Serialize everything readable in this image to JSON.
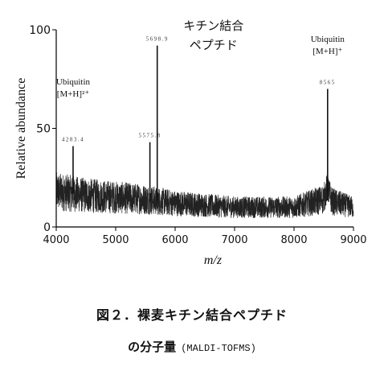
{
  "chart_data": {
    "type": "line",
    "title": "",
    "xlabel": "m/z",
    "ylabel": "Relative abundance",
    "xlim": [
      4000,
      9000
    ],
    "ylim": [
      0,
      100
    ],
    "xticks": [
      4000,
      5000,
      6000,
      7000,
      8000,
      9000
    ],
    "yticks": [
      0,
      50,
      100
    ],
    "peaks": [
      {
        "mz": 4283.4,
        "intensity": 41,
        "label": "4283.4"
      },
      {
        "mz": 5575.8,
        "intensity": 43,
        "label": "5575.8"
      },
      {
        "mz": 5698.9,
        "intensity": 92,
        "label": "5698.9"
      },
      {
        "mz": 8565,
        "intensity": 70,
        "label": "8565"
      }
    ],
    "baseline": [
      {
        "mz": 4000,
        "intensity": 18
      },
      {
        "mz": 4500,
        "intensity": 16
      },
      {
        "mz": 5000,
        "intensity": 15
      },
      {
        "mz": 5500,
        "intensity": 14
      },
      {
        "mz": 6000,
        "intensity": 12
      },
      {
        "mz": 6500,
        "intensity": 11
      },
      {
        "mz": 7000,
        "intensity": 10
      },
      {
        "mz": 7500,
        "intensity": 10
      },
      {
        "mz": 8000,
        "intensity": 10
      },
      {
        "mz": 8500,
        "intensity": 14
      },
      {
        "mz": 9000,
        "intensity": 10
      }
    ],
    "annotations": [
      {
        "mz": 4283.4,
        "lines": [
          "Ubiquitin",
          "[M+H]²⁺"
        ]
      },
      {
        "mz": 5698.9,
        "lines": [
          "キチン結合",
          "ペプチド"
        ]
      },
      {
        "mz": 8565,
        "lines": [
          "Ubiquitin",
          "[M+H]⁺"
        ]
      }
    ]
  },
  "caption": {
    "line1": "図２．裸麦キチン結合ペプチド",
    "line2_main": "の分子量",
    "line2_technique": "(MALDI-TOFMS)"
  }
}
